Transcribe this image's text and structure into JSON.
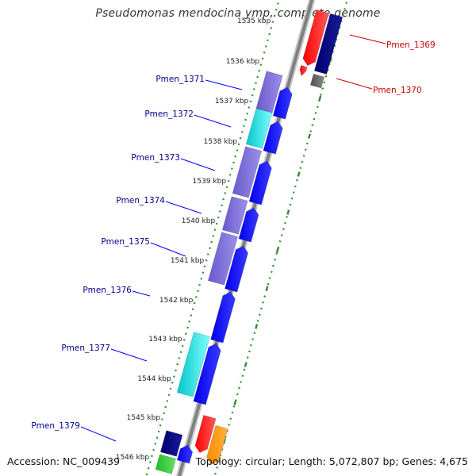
{
  "title": "Pseudomonas mendocina ymp, complete genome",
  "accession_text": "Accession: NC_009439",
  "summary_text": "Topology: circular; Length: 5,072,807 bp; Genes: 4,675",
  "colors": {
    "backbone": "#808080",
    "tick": "#2e8b2e",
    "forward_gene": "#0000ff",
    "label_forward": "#00008b",
    "label_reverse": "#cc0000"
  },
  "scale_labels": [
    "1535 kbp",
    "1536 kbp",
    "1537 kbp",
    "1538 kbp",
    "1539 kbp",
    "1540 kbp",
    "1541 kbp",
    "1542 kbp",
    "1543 kbp",
    "1544 kbp",
    "1545 kbp",
    "1546 kbp"
  ],
  "gene_labels_left": [
    "Pmen_1371",
    "Pmen_1372",
    "Pmen_1373",
    "Pmen_1374",
    "Pmen_1375",
    "Pmen_1376",
    "Pmen_1377",
    "Pmen_1379"
  ],
  "gene_labels_right": [
    "Pmen_1369",
    "Pmen_1370"
  ]
}
